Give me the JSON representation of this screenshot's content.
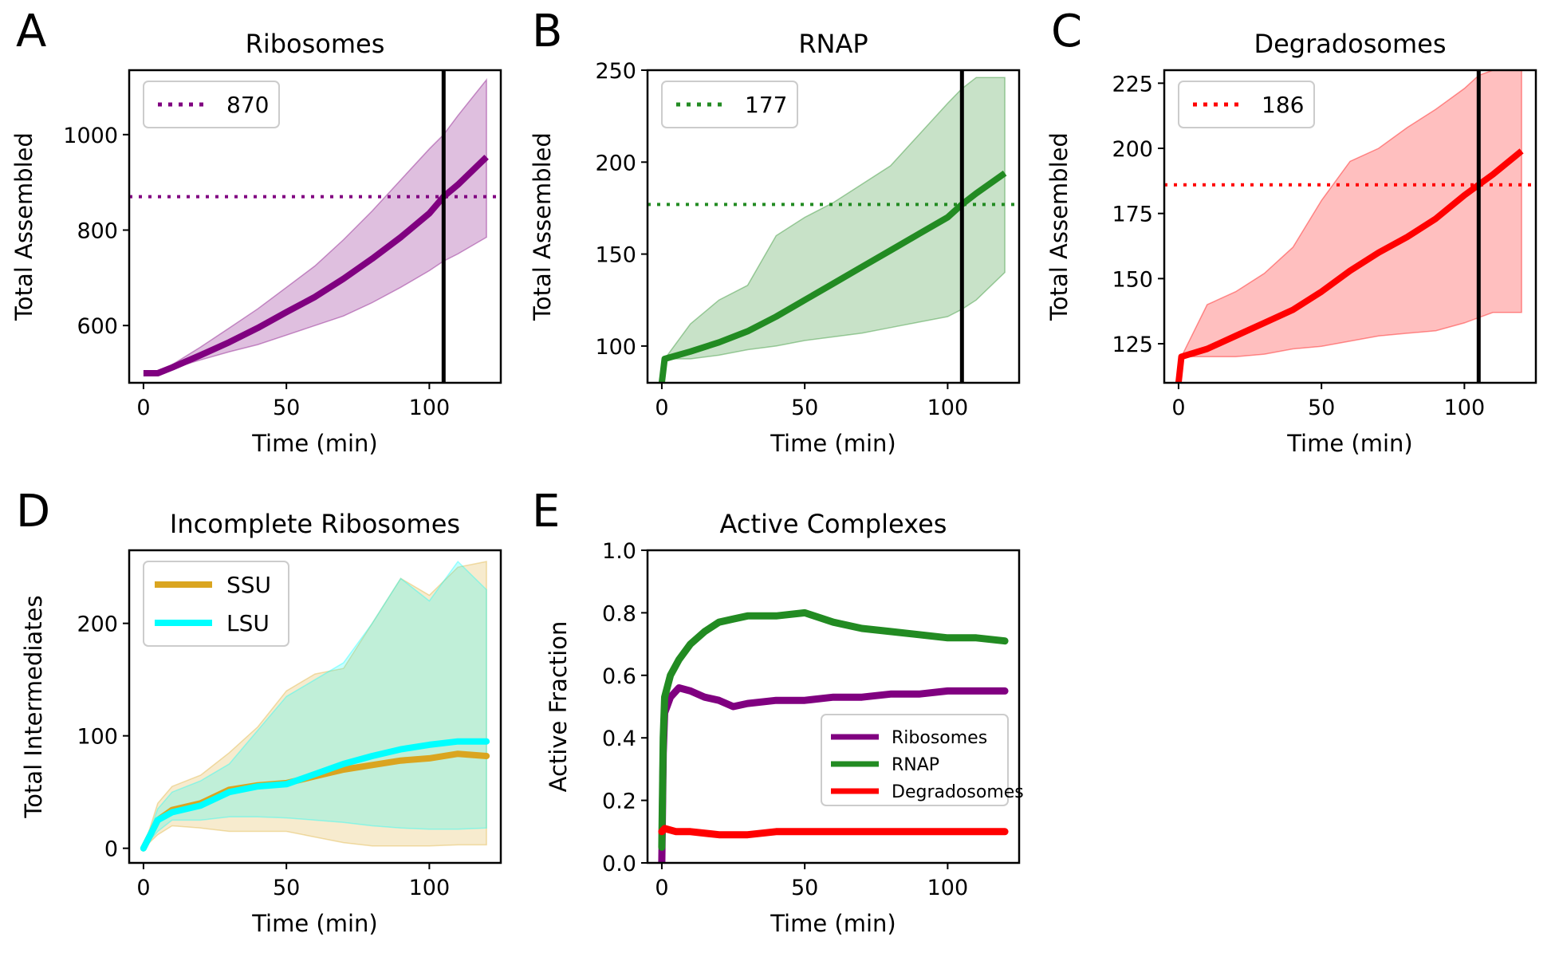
{
  "chart_data": [
    {
      "panel": "A",
      "type": "line",
      "title": "Ribosomes",
      "xlabel": "Time (min)",
      "ylabel": "Total Assembled",
      "xlim": [
        -5,
        125
      ],
      "ylim": [
        480,
        1135
      ],
      "xticks": [
        0,
        50,
        100
      ],
      "yticks": [
        600,
        800,
        1000
      ],
      "color": "#800080",
      "x": [
        0,
        5,
        10,
        20,
        30,
        40,
        50,
        60,
        70,
        80,
        90,
        100,
        105,
        110,
        120
      ],
      "mean": [
        500,
        500,
        512,
        538,
        565,
        595,
        628,
        660,
        698,
        740,
        785,
        835,
        870,
        895,
        953
      ],
      "lower": [
        500,
        500,
        510,
        528,
        545,
        560,
        580,
        600,
        620,
        648,
        680,
        715,
        735,
        750,
        785
      ],
      "upper": [
        500,
        500,
        518,
        555,
        595,
        635,
        680,
        725,
        780,
        840,
        905,
        970,
        1000,
        1040,
        1115
      ],
      "hline": 870,
      "vline": 105,
      "legend": [
        {
          "label": "870",
          "style": "dotted"
        }
      ],
      "legend_loc": "upper left"
    },
    {
      "panel": "B",
      "type": "line",
      "title": "RNAP",
      "xlabel": "Time (min)",
      "ylabel": "Total Assembled",
      "xlim": [
        -5,
        125
      ],
      "ylim": [
        80,
        250
      ],
      "xticks": [
        0,
        50,
        100
      ],
      "yticks": [
        100,
        150,
        200,
        250
      ],
      "color": "#228b22",
      "x": [
        0,
        1,
        10,
        20,
        30,
        40,
        50,
        60,
        70,
        80,
        90,
        100,
        105,
        110,
        120
      ],
      "mean": [
        80,
        93,
        97,
        102,
        108,
        116,
        125,
        134,
        143,
        152,
        161,
        170,
        177,
        183,
        194
      ],
      "lower": [
        80,
        93,
        93,
        95,
        98,
        100,
        103,
        105,
        107,
        110,
        113,
        116,
        120,
        125,
        140
      ],
      "upper": [
        80,
        93,
        112,
        125,
        133,
        160,
        170,
        178,
        188,
        198,
        215,
        232,
        240,
        246,
        246
      ],
      "hline": 177,
      "vline": 105,
      "legend": [
        {
          "label": "177",
          "style": "dotted"
        }
      ],
      "legend_loc": "upper left"
    },
    {
      "panel": "C",
      "type": "line",
      "title": "Degradosomes",
      "xlabel": "Time (min)",
      "ylabel": "Total Assembled",
      "xlim": [
        -5,
        125
      ],
      "ylim": [
        110,
        230
      ],
      "xticks": [
        0,
        50,
        100
      ],
      "yticks": [
        125,
        150,
        175,
        200,
        225
      ],
      "color": "#ff0000",
      "x": [
        0,
        1,
        10,
        20,
        30,
        40,
        50,
        60,
        70,
        80,
        90,
        100,
        105,
        110,
        120
      ],
      "mean": [
        110,
        120,
        123,
        128,
        133,
        138,
        145,
        153,
        160,
        166,
        173,
        182,
        186,
        190,
        199
      ],
      "lower": [
        110,
        120,
        120,
        120,
        121,
        123,
        124,
        126,
        128,
        129,
        130,
        133,
        135,
        137,
        137
      ],
      "upper": [
        110,
        120,
        140,
        145,
        152,
        162,
        180,
        195,
        200,
        208,
        215,
        223,
        228,
        230,
        230
      ],
      "hline": 186,
      "vline": 105,
      "legend": [
        {
          "label": "186",
          "style": "dotted"
        }
      ],
      "legend_loc": "upper left"
    },
    {
      "panel": "D",
      "type": "line",
      "title": "Incomplete Ribosomes",
      "xlabel": "Time (min)",
      "ylabel": "Total Intermediates",
      "xlim": [
        -5,
        125
      ],
      "ylim": [
        -13,
        265
      ],
      "xticks": [
        0,
        50,
        100
      ],
      "yticks": [
        0,
        100,
        200
      ],
      "legend_loc": "upper left",
      "series": [
        {
          "name": "SSU",
          "color": "#daa520",
          "x": [
            0,
            5,
            10,
            20,
            30,
            40,
            50,
            60,
            70,
            80,
            90,
            100,
            110,
            120
          ],
          "mean": [
            0,
            25,
            34,
            40,
            52,
            56,
            58,
            64,
            70,
            74,
            78,
            80,
            84,
            82
          ],
          "lower": [
            0,
            12,
            20,
            18,
            15,
            15,
            15,
            10,
            5,
            2,
            2,
            2,
            3,
            3
          ],
          "upper": [
            0,
            40,
            55,
            65,
            85,
            108,
            140,
            155,
            160,
            200,
            240,
            225,
            250,
            255
          ]
        },
        {
          "name": "LSU",
          "color": "#00ffff",
          "x": [
            0,
            5,
            10,
            20,
            30,
            40,
            50,
            60,
            70,
            80,
            90,
            100,
            110,
            120
          ],
          "mean": [
            0,
            25,
            32,
            38,
            50,
            55,
            57,
            66,
            75,
            82,
            88,
            92,
            95,
            95
          ],
          "lower": [
            0,
            15,
            25,
            25,
            28,
            28,
            27,
            25,
            23,
            20,
            18,
            17,
            17,
            18
          ],
          "upper": [
            0,
            35,
            50,
            60,
            75,
            105,
            135,
            150,
            165,
            200,
            240,
            220,
            255,
            230
          ]
        }
      ]
    },
    {
      "panel": "E",
      "type": "line",
      "title": "Active Complexes",
      "xlabel": "Time (min)",
      "ylabel": "Active Fraction",
      "xlim": [
        -5,
        125
      ],
      "ylim": [
        0.0,
        1.0
      ],
      "xticks": [
        0,
        50,
        100
      ],
      "yticks": [
        0.0,
        0.2,
        0.4,
        0.6,
        0.8,
        1.0
      ],
      "legend_loc": "lower right",
      "series": [
        {
          "name": "Ribosomes",
          "color": "#800080",
          "x": [
            0,
            0.5,
            1,
            3,
            6,
            10,
            15,
            20,
            25,
            30,
            40,
            50,
            60,
            70,
            80,
            90,
            100,
            110,
            120
          ],
          "values": [
            0.0,
            0.35,
            0.48,
            0.53,
            0.56,
            0.55,
            0.53,
            0.52,
            0.5,
            0.51,
            0.52,
            0.52,
            0.53,
            0.53,
            0.54,
            0.54,
            0.55,
            0.55,
            0.55
          ]
        },
        {
          "name": "RNAP",
          "color": "#228b22",
          "x": [
            0,
            0.5,
            1,
            3,
            6,
            10,
            15,
            20,
            25,
            30,
            40,
            50,
            60,
            70,
            80,
            90,
            100,
            110,
            120
          ],
          "values": [
            0.05,
            0.4,
            0.53,
            0.6,
            0.65,
            0.7,
            0.74,
            0.77,
            0.78,
            0.79,
            0.79,
            0.8,
            0.77,
            0.75,
            0.74,
            0.73,
            0.72,
            0.72,
            0.71
          ]
        },
        {
          "name": "Degradosomes",
          "color": "#ff0000",
          "x": [
            0,
            1,
            5,
            10,
            20,
            30,
            40,
            50,
            60,
            70,
            80,
            90,
            100,
            110,
            120
          ],
          "values": [
            0.1,
            0.11,
            0.1,
            0.1,
            0.09,
            0.09,
            0.1,
            0.1,
            0.1,
            0.1,
            0.1,
            0.1,
            0.1,
            0.1,
            0.1
          ]
        }
      ]
    }
  ]
}
